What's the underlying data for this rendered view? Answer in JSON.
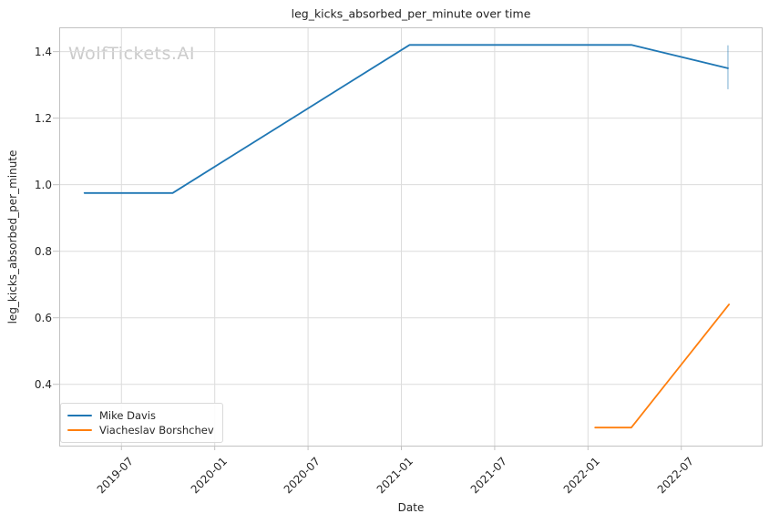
{
  "chart_data": {
    "type": "line",
    "title": "leg_kicks_absorbed_per_minute over time",
    "xlabel": "Date",
    "ylabel": "leg_kicks_absorbed_per_minute",
    "watermark": "WolfTickets.AI",
    "grid": true,
    "legend_position": "lower left",
    "x_ticks": [
      "2019-07",
      "2020-01",
      "2020-07",
      "2021-01",
      "2021-07",
      "2022-01",
      "2022-07"
    ],
    "y_ticks": [
      0.4,
      0.6,
      0.8,
      1.0,
      1.2,
      1.4
    ],
    "x_range": [
      "2019-03-01",
      "2022-12-08"
    ],
    "y_range": [
      0.213,
      1.473
    ],
    "colors": {
      "grid": "#dcdcdc",
      "spine": "#c2c2c2",
      "tick": "#c2c2c2",
      "error_bar": "rgba(31,119,180,0.4)"
    },
    "series": [
      {
        "name": "Mike Davis",
        "color": "#1f77b4",
        "points": [
          [
            "2019-04-20",
            0.975
          ],
          [
            "2019-10-10",
            0.975
          ],
          [
            "2021-01-17",
            1.42
          ],
          [
            "2022-03-25",
            1.42
          ],
          [
            "2022-10-01",
            1.35
          ]
        ],
        "error_bar": {
          "date": "2022-10-01",
          "lo": 1.287,
          "hi": 1.419
        }
      },
      {
        "name": "Viacheslav Borshchev",
        "color": "#ff7f0e",
        "points": [
          [
            "2022-01-15",
            0.27
          ],
          [
            "2022-03-25",
            0.27
          ],
          [
            "2022-10-03",
            0.64
          ]
        ]
      }
    ]
  }
}
